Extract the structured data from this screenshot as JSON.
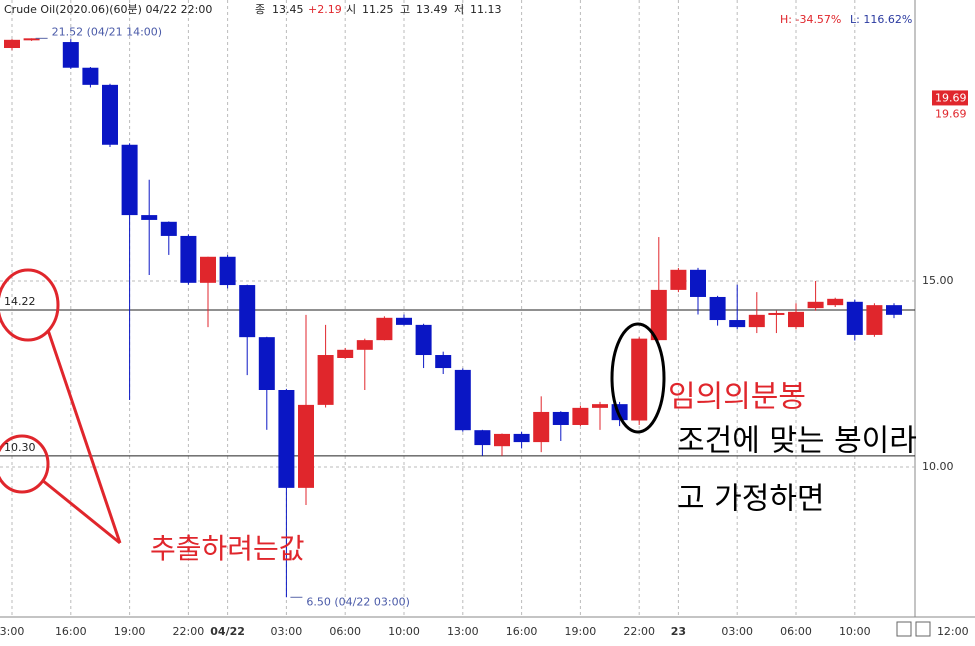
{
  "header": {
    "title": "Crude Oil(2020.06)(60분) 04/22 22:00",
    "close_label": "종",
    "close": 13.45,
    "change": "+2.19",
    "open_label": "시",
    "open": 11.25,
    "high_label": "고",
    "high": 13.49,
    "low_label": "저",
    "low": 11.13
  },
  "range_info": {
    "high": "H: -34.57%",
    "low": "L: 116.62%"
  },
  "chart_data": {
    "type": "candlestick",
    "categories": [
      "3:00",
      null,
      null,
      "16:00",
      null,
      null,
      "19:00",
      null,
      null,
      "22:00",
      null,
      "04/22",
      null,
      null,
      "03:00",
      null,
      null,
      "06:00",
      null,
      null,
      "10:00",
      null,
      null,
      "13:00",
      null,
      null,
      "16:00",
      null,
      null,
      "19:00",
      null,
      null,
      "22:00",
      null,
      "23",
      null,
      null,
      "03:00",
      null,
      null,
      "06:00",
      null,
      null,
      "10:00",
      null,
      null,
      null,
      null,
      "12:00"
    ],
    "open": [
      21.26,
      21.5,
      null,
      21.42,
      20.73,
      20.27,
      18.66,
      16.77,
      16.59,
      16.21,
      14.95,
      15.65,
      14.89,
      13.49,
      12.07,
      9.44,
      11.67,
      12.93,
      13.15,
      13.41,
      14.01,
      13.82,
      13.01,
      12.61,
      10.99,
      10.56,
      10.89,
      10.67,
      11.48,
      11.13,
      11.59,
      11.69,
      11.25,
      13.41,
      14.76,
      15.3,
      14.57,
      13.95,
      13.76,
      14.09,
      13.76,
      14.27,
      14.35,
      14.44,
      13.55,
      14.35,
      null,
      null,
      null
    ],
    "high": [
      21.5,
      21.52,
      null,
      21.5,
      20.75,
      20.3,
      18.7,
      17.72,
      16.6,
      16.25,
      15.65,
      15.7,
      14.9,
      13.5,
      12.1,
      14.09,
      13.82,
      13.2,
      13.45,
      14.05,
      14.1,
      13.85,
      13.1,
      12.65,
      11.0,
      10.9,
      10.95,
      11.9,
      11.5,
      11.65,
      11.75,
      11.75,
      13.49,
      16.18,
      15.35,
      15.35,
      14.6,
      14.9,
      14.7,
      14.2,
      14.4,
      15.0,
      14.55,
      14.5,
      14.4,
      14.4,
      null,
      null,
      null
    ],
    "low": [
      21.2,
      21.45,
      null,
      20.7,
      20.2,
      18.6,
      11.8,
      15.16,
      15.7,
      14.9,
      13.76,
      14.8,
      12.47,
      11.0,
      6.5,
      8.98,
      11.6,
      12.9,
      12.07,
      13.4,
      13.8,
      12.66,
      12.5,
      10.95,
      10.3,
      10.3,
      10.5,
      10.4,
      10.7,
      11.1,
      11.0,
      11.1,
      11.13,
      13.4,
      14.7,
      14.1,
      13.8,
      13.7,
      13.6,
      13.6,
      13.7,
      14.2,
      14.3,
      13.4,
      13.5,
      14.0,
      null,
      null,
      null
    ],
    "close": [
      21.48,
      21.52,
      null,
      20.73,
      20.27,
      18.66,
      16.77,
      16.64,
      16.21,
      14.95,
      15.65,
      14.89,
      13.49,
      12.07,
      9.44,
      11.67,
      13.01,
      13.15,
      13.41,
      14.01,
      13.82,
      13.01,
      12.66,
      10.99,
      10.59,
      10.89,
      10.67,
      11.48,
      11.13,
      11.59,
      11.69,
      11.26,
      13.45,
      14.76,
      15.3,
      14.57,
      13.95,
      13.76,
      14.09,
      14.14,
      14.17,
      14.44,
      14.52,
      13.55,
      14.35,
      14.09,
      null,
      null,
      null
    ],
    "up_color": "#e0262c",
    "down_color": "#0a16c4",
    "ylim": [
      5.97,
      22.55
    ],
    "yticks": [
      {
        "value": 10,
        "label": "10.00"
      },
      {
        "value": 15,
        "label": "15.00"
      }
    ],
    "grid": true,
    "hlines": [
      {
        "value": 14.22,
        "label": "14.22"
      },
      {
        "value": 10.3,
        "label": "10.30"
      }
    ],
    "last_price": {
      "value": 19.69,
      "label": "19.69"
    },
    "annotations": [
      {
        "text": "21.52 (04/21 14:00)",
        "value": 21.52
      },
      {
        "text": "6.50 (04/22 03:00)",
        "value": 6.5
      }
    ]
  },
  "notes": {
    "extract": "추출하려는값",
    "candle": "임의의분봉",
    "line1": "조건에 맞는 봉이라",
    "line2": "고 가정하면"
  }
}
